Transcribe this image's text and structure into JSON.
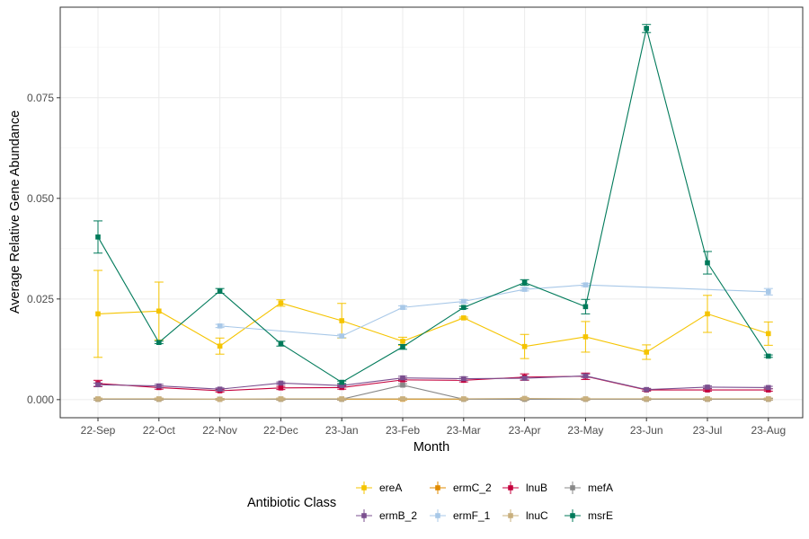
{
  "chart_data": {
    "type": "line",
    "xlabel": "Month",
    "ylabel": "Average Relative Gene Abundance",
    "categories": [
      "22-Sep",
      "22-Oct",
      "22-Nov",
      "22-Dec",
      "23-Jan",
      "23-Feb",
      "23-Mar",
      "23-Apr",
      "23-May",
      "23-Jun",
      "23-Jul",
      "23-Aug"
    ],
    "ylim": [
      -0.0045,
      0.0975
    ],
    "yticks": [
      0.0,
      0.025,
      0.05,
      0.075
    ],
    "ytick_labels": [
      "0.000",
      "0.025",
      "0.050",
      "0.075"
    ],
    "grid": true,
    "legend": {
      "title": "Antibiotic Class",
      "position": "bottom",
      "rows": [
        [
          "ereA",
          "ermC_2",
          "lnuB",
          "mefA"
        ],
        [
          "ermB_2",
          "ermF_1",
          "lnuC",
          "msrE"
        ]
      ]
    },
    "series": [
      {
        "name": "ereA",
        "color": "#F5C400",
        "values": [
          0.0213,
          0.022,
          0.0133,
          0.024,
          0.0196,
          0.0145,
          0.0203,
          0.0132,
          0.0156,
          0.0118,
          0.0213,
          0.0164
        ],
        "err": [
          0.0108,
          0.0072,
          0.002,
          0.0008,
          0.0043,
          0.001,
          0.0002,
          0.003,
          0.0038,
          0.0018,
          0.0046,
          0.0029
        ]
      },
      {
        "name": "ermC_2",
        "color": "#E08B00",
        "values": [
          0.0001,
          0.0001,
          0.0001,
          0.0001,
          0.0001,
          0.0001,
          0.0001,
          0.0001,
          0.0001,
          0.0001,
          0.0001,
          0.0001
        ],
        "err": [
          0.0002,
          0.0002,
          0.0002,
          0.0002,
          0.0002,
          0.0002,
          0.0002,
          0.0002,
          0.0002,
          0.0002,
          0.0002,
          0.0002
        ]
      },
      {
        "name": "lnuB",
        "color": "#C4003C",
        "values": [
          0.004,
          0.003,
          0.0022,
          0.0029,
          0.003,
          0.0049,
          0.0048,
          0.0056,
          0.0058,
          0.0024,
          0.0024,
          0.0024
        ],
        "err": [
          0.0008,
          0.0004,
          0.0003,
          0.0004,
          0.0004,
          0.0004,
          0.0004,
          0.0008,
          0.0008,
          0.0003,
          0.0003,
          0.0003
        ]
      },
      {
        "name": "mefA",
        "color": "#888888",
        "values": [
          0.0001,
          0.0001,
          0.0001,
          0.0001,
          0.0001,
          0.0036,
          0.0001,
          0.0001,
          0.0001,
          0.0001,
          0.0001,
          0.0001
        ],
        "err": [
          0.0002,
          0.0002,
          0.0002,
          0.0002,
          0.0002,
          0.0003,
          0.0002,
          0.0002,
          0.0002,
          0.0002,
          0.0002,
          0.0002
        ]
      },
      {
        "name": "ermB_2",
        "color": "#7B4F8F",
        "values": [
          0.0037,
          0.0034,
          0.0026,
          0.0041,
          0.0035,
          0.0054,
          0.0052,
          0.0053,
          0.0059,
          0.0025,
          0.0031,
          0.003
        ],
        "err": [
          0.0004,
          0.0004,
          0.0003,
          0.0003,
          0.0003,
          0.0004,
          0.0004,
          0.0004,
          0.0004,
          0.0003,
          0.0003,
          0.0003
        ]
      },
      {
        "name": "ermF_1",
        "color": "#A8C8E8",
        "values": [
          null,
          null,
          0.0183,
          null,
          0.0158,
          0.0229,
          0.0244,
          0.0274,
          0.0285,
          null,
          null,
          0.0268
        ],
        "err": [
          null,
          null,
          0.0004,
          null,
          0.0004,
          0.0004,
          0.0004,
          0.0004,
          0.0004,
          null,
          null,
          0.0008
        ]
      },
      {
        "name": "lnuC",
        "color": "#C9B07E",
        "values": [
          0.0002,
          0.0002,
          0.0001,
          0.0002,
          0.0002,
          0.0002,
          0.0002,
          0.0003,
          0.0002,
          0.0002,
          0.0002,
          0.0002
        ],
        "err": [
          0.0002,
          0.0002,
          0.0002,
          0.0002,
          0.0002,
          0.0002,
          0.0002,
          0.0002,
          0.0002,
          0.0002,
          0.0002,
          0.0002
        ]
      },
      {
        "name": "msrE",
        "color": "#007A5A",
        "values": [
          0.0404,
          0.0142,
          0.027,
          0.0139,
          0.0043,
          0.0131,
          0.0229,
          0.0291,
          0.0231,
          0.0922,
          0.034,
          0.0108
        ],
        "err": [
          0.004,
          0.0003,
          0.0006,
          0.0006,
          0.0003,
          0.0006,
          0.0003,
          0.0007,
          0.0018,
          0.001,
          0.0028,
          0.0003
        ]
      }
    ]
  }
}
